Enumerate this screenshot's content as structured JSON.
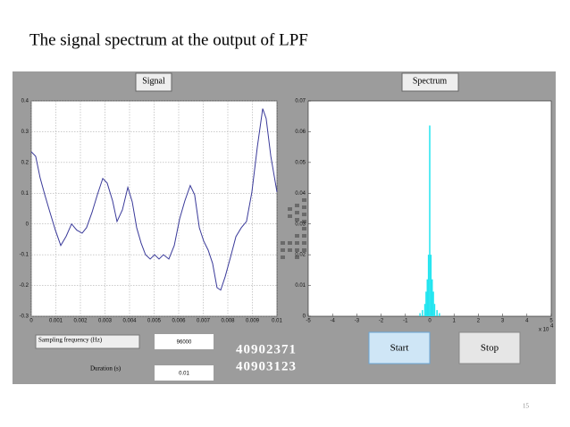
{
  "slide": {
    "title": "The signal spectrum at the output of LPF",
    "page_number": "15"
  },
  "gui": {
    "sampling_label": "Sampling frequency (Hz)",
    "sampling_value": "96000",
    "duration_label": "Duration (s)",
    "duration_value": "0.01",
    "ids": [
      "40902371",
      "40903123"
    ],
    "start": "Start",
    "stop": "Stop"
  },
  "chart_data": [
    {
      "type": "line",
      "title": "Signal",
      "color": "#3a3a9a",
      "grid": true,
      "x": [
        0,
        0.00018,
        0.00036,
        0.00055,
        0.00073,
        0.00098,
        0.0012,
        0.00142,
        0.00164,
        0.00185,
        0.00207,
        0.00225,
        0.00247,
        0.00269,
        0.00291,
        0.00309,
        0.00331,
        0.00349,
        0.00371,
        0.00393,
        0.00411,
        0.00429,
        0.00447,
        0.00465,
        0.00484,
        0.00502,
        0.0052,
        0.00538,
        0.0056,
        0.00582,
        0.00604,
        0.00625,
        0.00647,
        0.00665,
        0.00684,
        0.00702,
        0.0072,
        0.00738,
        0.00756,
        0.00771,
        0.00789,
        0.00811,
        0.00833,
        0.00855,
        0.00876,
        0.00898,
        0.0092,
        0.00942,
        0.00956,
        0.00975,
        0.01
      ],
      "values": [
        0.235,
        0.22,
        0.15,
        0.095,
        0.046,
        -0.02,
        -0.07,
        -0.04,
        0,
        -0.02,
        -0.03,
        -0.012,
        0.037,
        0.095,
        0.148,
        0.133,
        0.075,
        0.008,
        0.046,
        0.119,
        0.072,
        -0.012,
        -0.062,
        -0.1,
        -0.114,
        -0.1,
        -0.114,
        -0.1,
        -0.114,
        -0.07,
        0.017,
        0.075,
        0.125,
        0.095,
        -0.012,
        -0.056,
        -0.085,
        -0.128,
        -0.207,
        -0.215,
        -0.172,
        -0.108,
        -0.041,
        -0.012,
        0.008,
        0.104,
        0.25,
        0.375,
        0.343,
        0.22,
        0.104
      ],
      "xlim": [
        0,
        0.01
      ],
      "xticks": [
        0,
        0.001,
        0.002,
        0.003,
        0.004,
        0.005,
        0.006,
        0.007,
        0.008,
        0.009,
        0.01
      ],
      "ylim": [
        -0.3,
        0.4
      ],
      "yticks": [
        -0.3,
        -0.2,
        -0.1,
        0,
        0.1,
        0.2,
        0.3,
        0.4
      ]
    },
    {
      "type": "stem",
      "title": "Spectrum",
      "color": "#22e5f0",
      "grid": false,
      "x": [
        -0.4,
        -0.3,
        -0.2,
        -0.15,
        -0.1,
        -0.05,
        0,
        0.05,
        0.1,
        0.15,
        0.2,
        0.3,
        0.4
      ],
      "values": [
        0.001,
        0.002,
        0.004,
        0.008,
        0.012,
        0.02,
        0.062,
        0.02,
        0.012,
        0.008,
        0.004,
        0.002,
        0.001
      ],
      "xlim": [
        -5,
        5
      ],
      "xticks": [
        -5,
        -4,
        -3,
        -2,
        -1,
        0,
        1,
        2,
        3,
        4,
        5
      ],
      "ylim": [
        0,
        0.07
      ],
      "yticks": [
        0,
        0.01,
        0.02,
        0.03,
        0.04,
        0.05,
        0.06,
        0.07
      ],
      "x_multiplier": "x 10",
      "x_exponent": "4"
    }
  ]
}
